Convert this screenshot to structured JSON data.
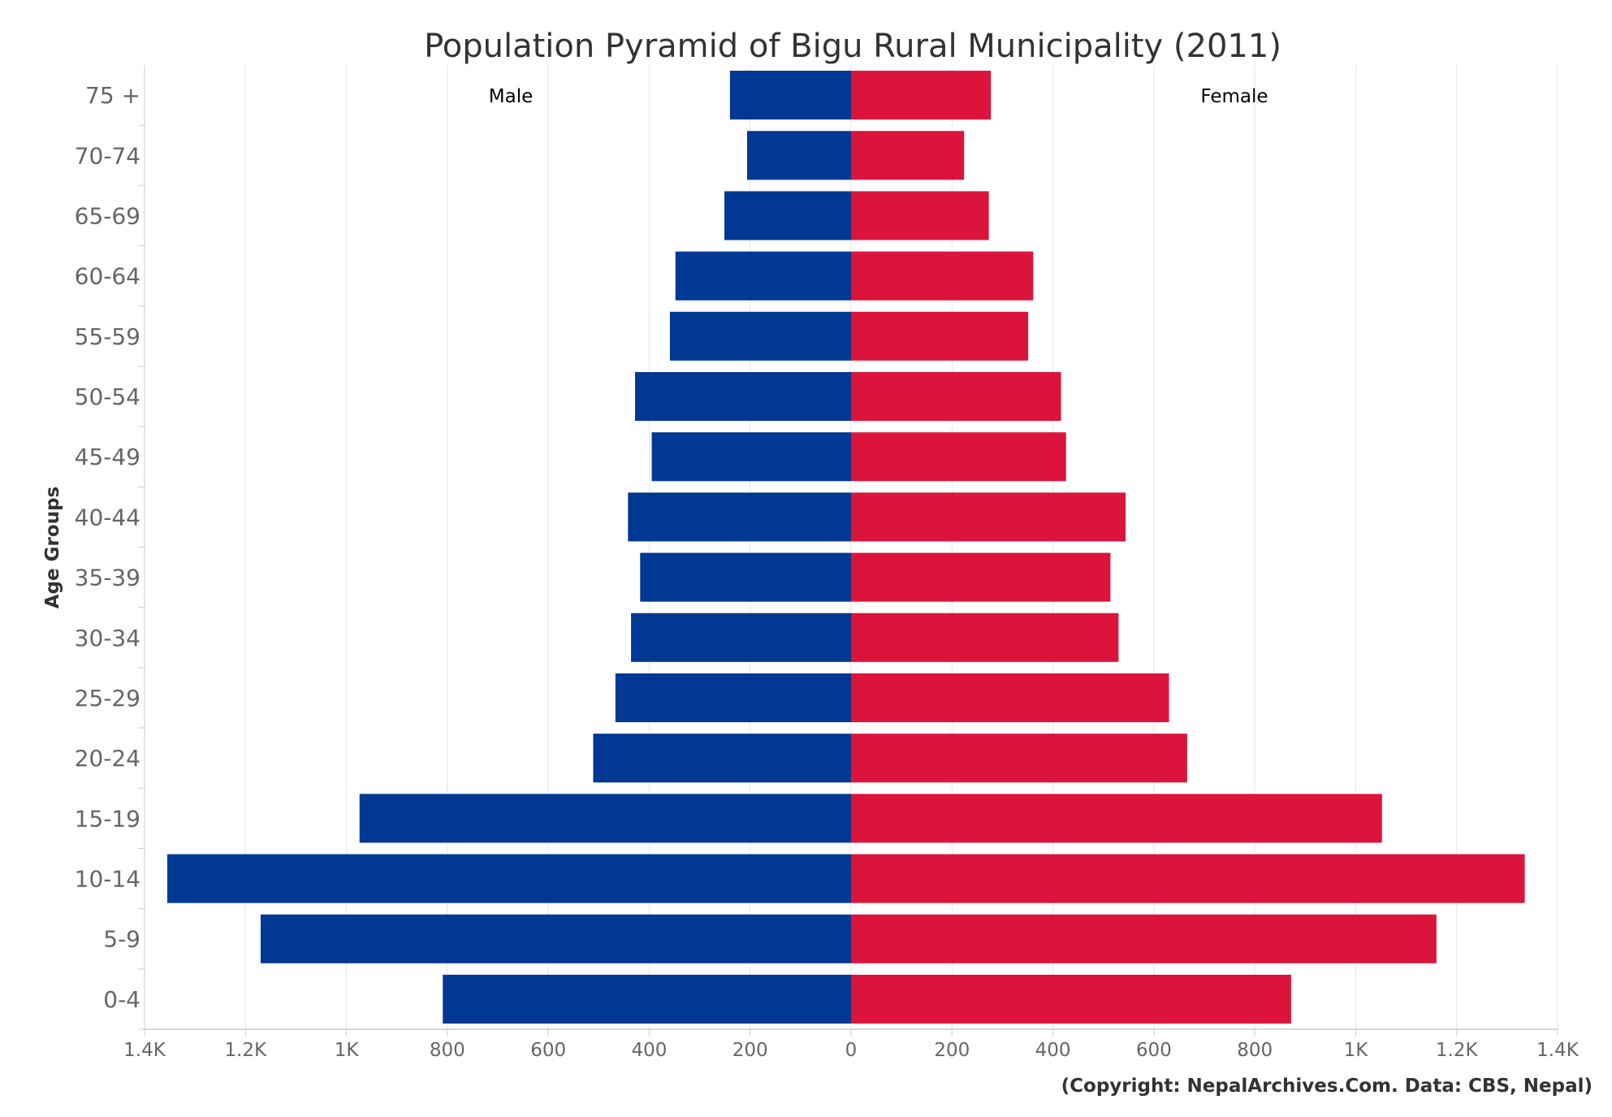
{
  "chart_data": {
    "type": "bar",
    "orientation": "horizontal-pyramid",
    "title": "Population Pyramid of Bigu Rural Municipality (2011)",
    "ylabel": "Age Groups",
    "xlabel": "",
    "xlim": [
      -1400,
      1400
    ],
    "x_ticks": [
      "1.4K",
      "1.2K",
      "1K",
      "800",
      "600",
      "400",
      "200",
      "0",
      "200",
      "400",
      "600",
      "800",
      "1K",
      "1.2K",
      "1.4K"
    ],
    "grid": true,
    "categories": [
      "0-4",
      "5-9",
      "10-14",
      "15-19",
      "20-24",
      "25-29",
      "30-34",
      "35-39",
      "40-44",
      "45-49",
      "50-54",
      "55-59",
      "60-64",
      "65-69",
      "70-74",
      "75 +"
    ],
    "series": [
      {
        "name": "Male",
        "color": "#003893",
        "values": [
          809,
          1170,
          1355,
          974,
          511,
          467,
          436,
          418,
          442,
          395,
          428,
          359,
          348,
          251,
          206,
          240
        ]
      },
      {
        "name": "Female",
        "color": "#DC143C",
        "values": [
          872,
          1160,
          1335,
          1052,
          666,
          630,
          530,
          514,
          544,
          426,
          416,
          351,
          361,
          273,
          224,
          277
        ]
      }
    ],
    "credit": "(Copyright: NepalArchives.Com. Data: CBS, Nepal)"
  }
}
